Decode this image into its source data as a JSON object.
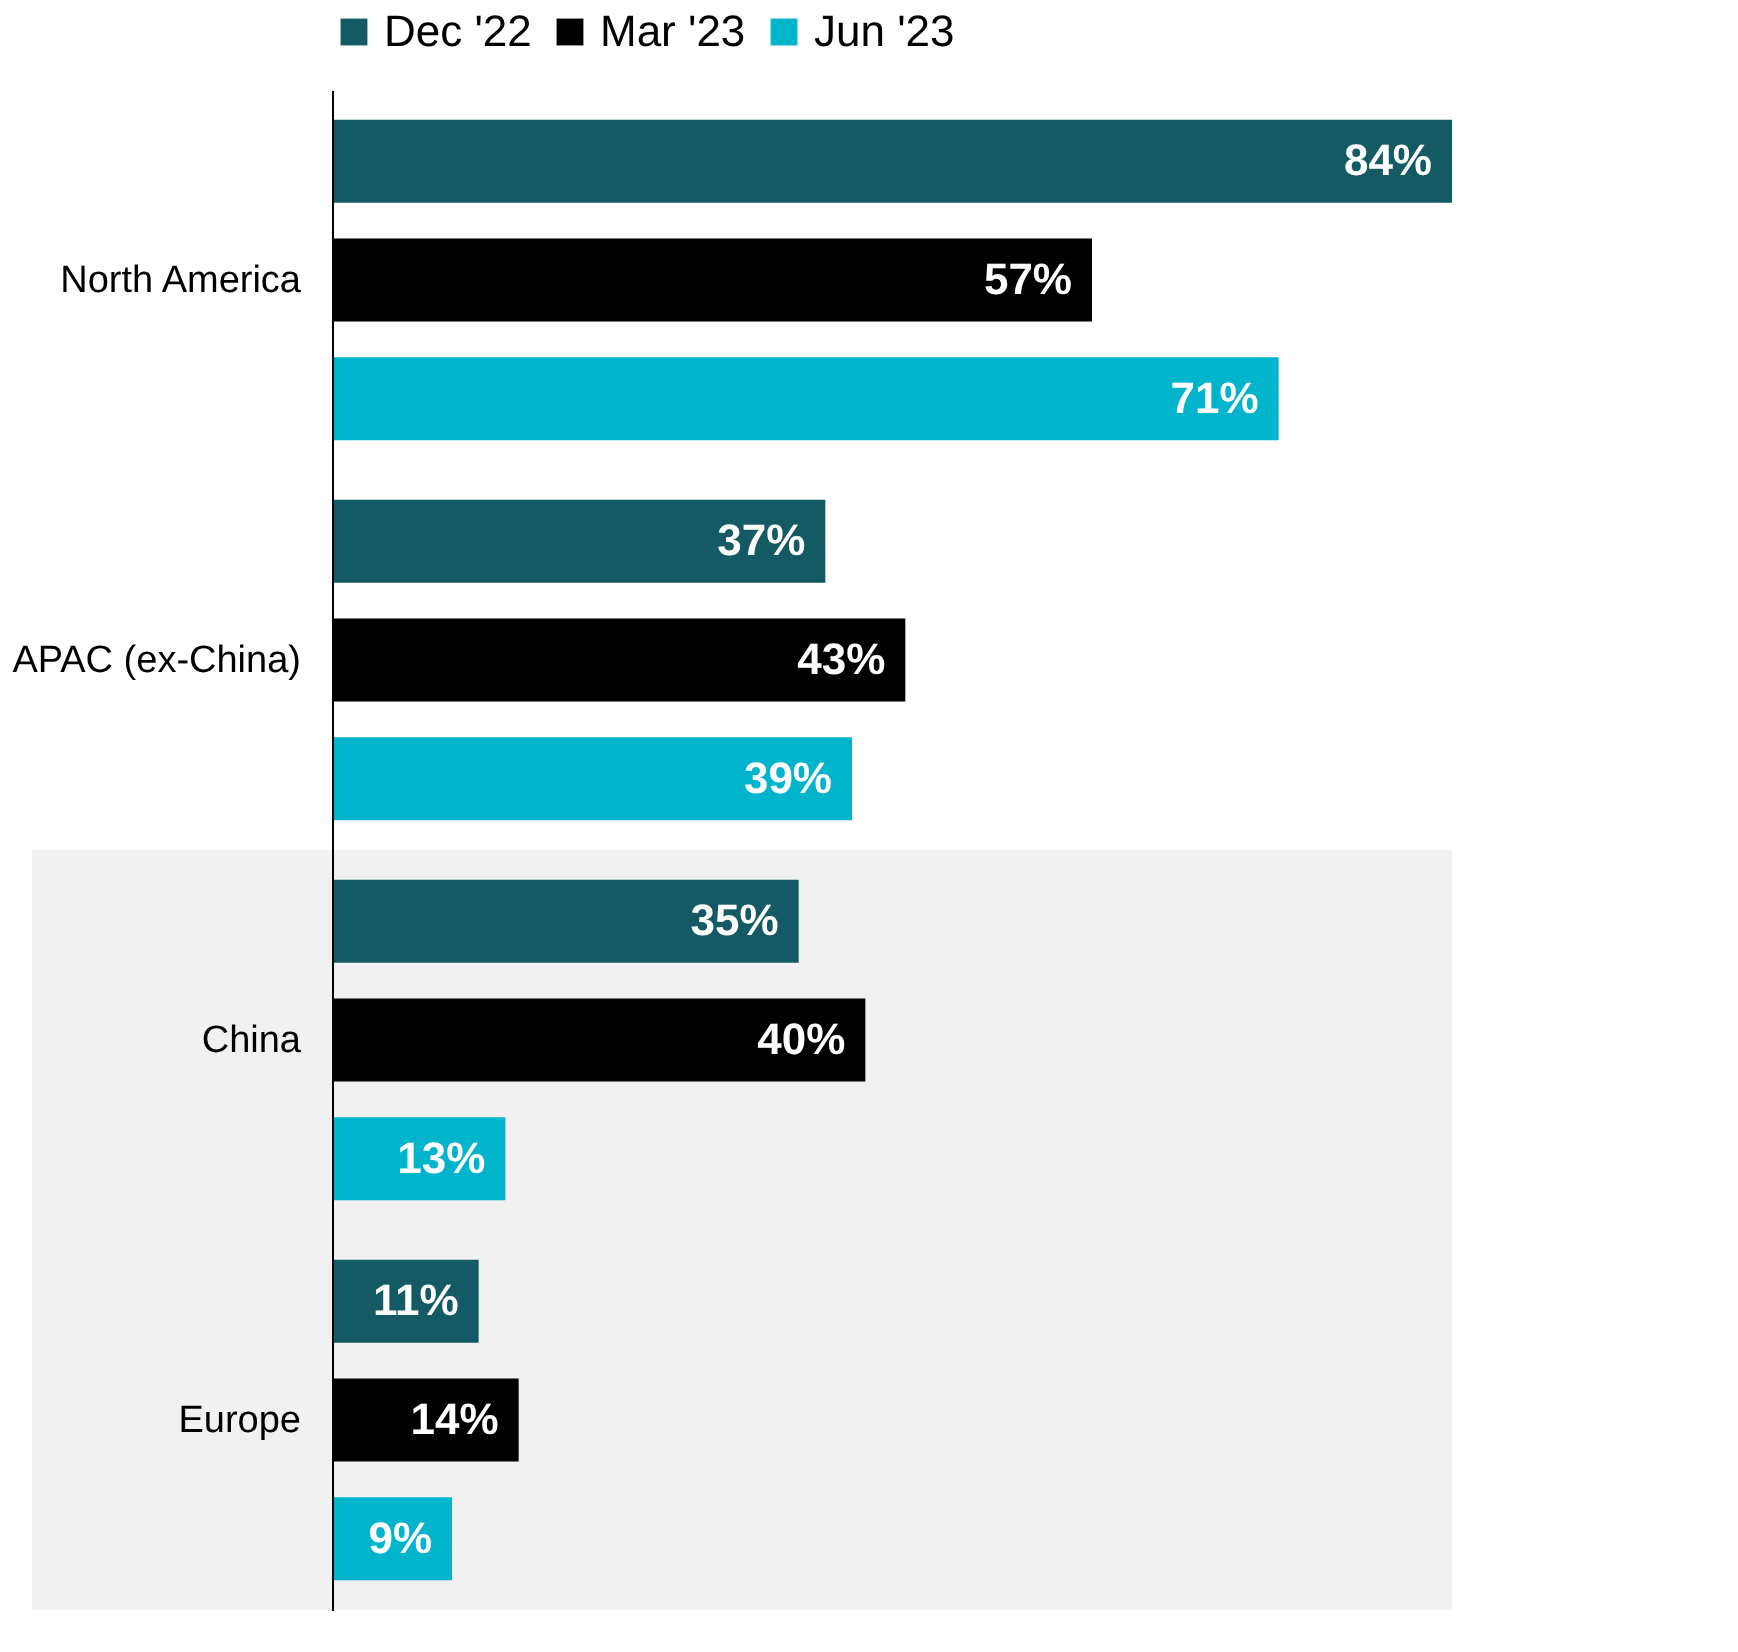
{
  "chart_data": {
    "type": "bar",
    "orientation": "horizontal",
    "categories": [
      "North America",
      "APAC (ex-China)",
      "China",
      "Europe"
    ],
    "series": [
      {
        "name": "Dec '22",
        "color": "#135a64",
        "values": [
          84,
          37,
          35,
          11
        ],
        "value_labels": [
          "84%",
          "37%",
          "35%",
          "11%"
        ]
      },
      {
        "name": "Mar '23",
        "color": "#000000",
        "values": [
          57,
          43,
          40,
          14
        ],
        "value_labels": [
          "57%",
          "43%",
          "40%",
          "14%"
        ]
      },
      {
        "name": "Jun '23",
        "color": "#00b4cc",
        "values": [
          71,
          39,
          13,
          9
        ],
        "value_labels": [
          "71%",
          "39%",
          "13%",
          "9%"
        ]
      }
    ],
    "legend": "top",
    "bands": [
      {
        "axis": "y",
        "from": "China",
        "to": "Europe",
        "color": "#f1f1f1"
      }
    ]
  }
}
